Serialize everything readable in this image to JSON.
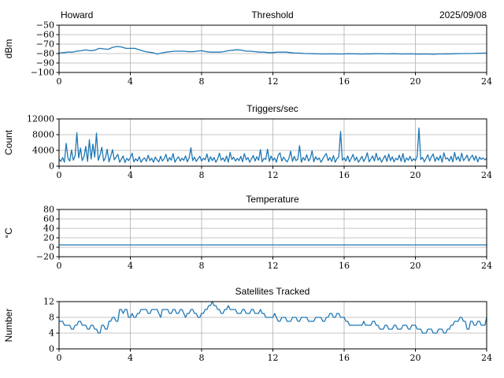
{
  "figure": {
    "background": "#ffffff",
    "line_color": "#1f77b4",
    "grid_color": "#b0b0b0",
    "spine_color": "#000000"
  },
  "chart_data": [
    {
      "type": "line",
      "title": "Threshold",
      "title_left": "Howard",
      "title_right": "2025/09/08",
      "ylabel": "dBm",
      "xlabel": "",
      "xlim": [
        0,
        24
      ],
      "xticks": [
        0,
        4,
        8,
        12,
        16,
        20,
        24
      ],
      "ylim": [
        -100,
        -50
      ],
      "yticks": [
        -50,
        -60,
        -70,
        -80,
        -90,
        -100
      ],
      "grid": true,
      "x_start": 0,
      "x_step": 0.25,
      "values": [
        -79.5,
        -79,
        -78.5,
        -78.5,
        -77.5,
        -77,
        -76,
        -77,
        -76.5,
        -74.5,
        -75,
        -75.5,
        -73.5,
        -72.5,
        -73,
        -74.5,
        -74.5,
        -74.5,
        -76,
        -77.5,
        -78.5,
        -79,
        -80.5,
        -79.5,
        -78.5,
        -78,
        -77.5,
        -77.5,
        -77.5,
        -78,
        -78,
        -77.5,
        -77,
        -78,
        -78.5,
        -78.5,
        -78.5,
        -78,
        -77,
        -76.5,
        -76,
        -76.5,
        -77.5,
        -77.5,
        -78,
        -78.5,
        -78.5,
        -79,
        -79,
        -78.5,
        -78.5,
        -78.5,
        -79,
        -79.5,
        -79.5,
        -80,
        -80,
        -80.2,
        -80.3,
        -80.4,
        -80.4,
        -80.3,
        -80.4,
        -80.5,
        -80.4,
        -80.2,
        -80.3,
        -80.4,
        -80.5,
        -80.3,
        -80.4,
        -80.2,
        -80.1,
        -80.3,
        -80.4,
        -80.2,
        -80.3,
        -80.5,
        -80.4,
        -80.3,
        -80.5,
        -80.6,
        -80.4,
        -80.5,
        -80.8,
        -80.5,
        -80.4,
        -80.3,
        -80.4,
        -80.2,
        -80.1,
        -80,
        -80,
        -79.9,
        -79.7,
        -79.6,
        -79.5
      ]
    },
    {
      "type": "line",
      "title": "Triggers/sec",
      "ylabel": "Count",
      "xlabel": "",
      "xlim": [
        0,
        24
      ],
      "xticks": [
        0,
        4,
        8,
        12,
        16,
        20,
        24
      ],
      "ylim": [
        0,
        12000
      ],
      "yticks": [
        0,
        4000,
        8000,
        12000
      ],
      "grid": true,
      "x_start": 0,
      "x_step": 0.1,
      "values": [
        1800,
        1200,
        2200,
        1000,
        5800,
        2000,
        1300,
        4100,
        1500,
        2600,
        8500,
        2100,
        4600,
        1400,
        2400,
        5000,
        1200,
        6700,
        1800,
        5600,
        2300,
        8400,
        1500,
        2800,
        4800,
        1300,
        2100,
        4300,
        1100,
        2500,
        4200,
        1600,
        2300,
        3000,
        1000,
        1800,
        2600,
        900,
        2000,
        1400,
        2200,
        3300,
        1100,
        1900,
        1300,
        2400,
        1000,
        1700,
        2100,
        1200,
        2800,
        1400,
        2000,
        1000,
        2300,
        1600,
        1100,
        2500,
        1300,
        1900,
        3000,
        1200,
        2200,
        1500,
        3200,
        1000,
        1800,
        2400,
        1300,
        2000,
        1500,
        2600,
        1100,
        2100,
        4700,
        1400,
        2300,
        1200,
        1900,
        2500,
        1300,
        2000,
        1600,
        3100,
        1100,
        2400,
        1400,
        2200,
        1000,
        1800,
        3300,
        1500,
        2100,
        1200,
        2600,
        1000,
        3500,
        1700,
        2300,
        1300,
        2000,
        1400,
        2500,
        1100,
        3200,
        1600,
        2200,
        1000,
        1900,
        2700,
        1300,
        2400,
        1500,
        4200,
        1100,
        2000,
        1700,
        4300,
        1200,
        2600,
        1400,
        2100,
        1000,
        2800,
        3400,
        1300,
        2300,
        1600,
        1100,
        2000,
        3800,
        1200,
        2500,
        1400,
        1800,
        5200,
        1000,
        2200,
        1500,
        2900,
        1300,
        2000,
        3900,
        1100,
        2400,
        1600,
        2100,
        1000,
        1800,
        2600,
        3200,
        1400,
        2200,
        1200,
        2700,
        1000,
        1900,
        2400,
        8800,
        1500,
        2100,
        1300,
        2600,
        1100,
        2000,
        3000,
        1400,
        2300,
        1000,
        1700,
        2500,
        1200,
        2000,
        3400,
        1100,
        1800,
        2600,
        1300,
        3300,
        1500,
        2200,
        1000,
        1900,
        2700,
        1200,
        3100,
        1400,
        2400,
        1100,
        2000,
        1600,
        2800,
        1200,
        3200,
        1000,
        2100,
        1500,
        2500,
        1300,
        1900,
        1400,
        2600,
        9700,
        1700,
        2200,
        1100,
        2000,
        2900,
        1300,
        2400,
        3100,
        1200,
        2300,
        1500,
        2700,
        1000,
        3400,
        1800,
        2100,
        1300,
        2500,
        1100,
        3500,
        1600,
        2400,
        1200,
        3300,
        1400,
        2000,
        2800,
        1300,
        2200,
        2800,
        1500,
        2600,
        1100,
        2300,
        1700,
        2100,
        1600,
        2000
      ]
    },
    {
      "type": "line",
      "title": "Temperature",
      "ylabel": "°C",
      "xlabel": "",
      "xlim": [
        0,
        24
      ],
      "xticks": [
        0,
        4,
        8,
        12,
        16,
        20,
        24
      ],
      "ylim": [
        -20,
        80
      ],
      "yticks": [
        -20,
        0,
        20,
        40,
        60,
        80
      ],
      "grid": true,
      "x_start": 0,
      "x_step": 24,
      "values": [
        5,
        5
      ]
    },
    {
      "type": "line",
      "title": "Satellites Tracked",
      "ylabel": "Number",
      "xlabel": "",
      "xlim": [
        0,
        24
      ],
      "xticks": [
        0,
        4,
        8,
        12,
        16,
        20,
        24
      ],
      "ylim": [
        0,
        12
      ],
      "yticks": [
        0,
        4,
        8,
        12
      ],
      "grid": true,
      "x_start": 0,
      "x_step": 0.1,
      "values": [
        7,
        7,
        7,
        6,
        6,
        6,
        6,
        5,
        5,
        6,
        6,
        7,
        7,
        6,
        6,
        6,
        5,
        5,
        6,
        6,
        5,
        5,
        4,
        4,
        6,
        6,
        5,
        5,
        7,
        7,
        8,
        8,
        7,
        7,
        10,
        10,
        9,
        10,
        10,
        8,
        8,
        9,
        8,
        8,
        9,
        9,
        10,
        10,
        10,
        10,
        9,
        9,
        10,
        10,
        10,
        10,
        9,
        8,
        10,
        10,
        10,
        10,
        9,
        9,
        10,
        10,
        9,
        9,
        10,
        10,
        9,
        8,
        9,
        9,
        10,
        10,
        9,
        9,
        8,
        8,
        9,
        9,
        10,
        10,
        11,
        11,
        12,
        11,
        11,
        10,
        10,
        9,
        9,
        10,
        10,
        11,
        10,
        10,
        10,
        10,
        9,
        9,
        9,
        10,
        10,
        9,
        9,
        9,
        10,
        10,
        9,
        9,
        9,
        10,
        9,
        9,
        8,
        8,
        8,
        8,
        8,
        9,
        8,
        7,
        7,
        8,
        8,
        8,
        7,
        7,
        7,
        8,
        8,
        8,
        7,
        7,
        8,
        8,
        8,
        8,
        7,
        7,
        7,
        7,
        8,
        8,
        8,
        8,
        7,
        7,
        8,
        8,
        9,
        9,
        8,
        8,
        9,
        9,
        8,
        8,
        8,
        7,
        7,
        6,
        6,
        6,
        6,
        6,
        6,
        6,
        6,
        7,
        6,
        6,
        6,
        6,
        7,
        7,
        6,
        6,
        5,
        5,
        5,
        6,
        6,
        5,
        5,
        5,
        6,
        6,
        5,
        5,
        5,
        6,
        6,
        6,
        5,
        5,
        6,
        6,
        6,
        5,
        5,
        5,
        4,
        4,
        4,
        5,
        5,
        5,
        4,
        4,
        4,
        5,
        5,
        5,
        4,
        4,
        5,
        5,
        6,
        6,
        7,
        7,
        7,
        8,
        8,
        7,
        7,
        5,
        5,
        7,
        7,
        6,
        6,
        7,
        7,
        6,
        6,
        6,
        8
      ]
    }
  ]
}
